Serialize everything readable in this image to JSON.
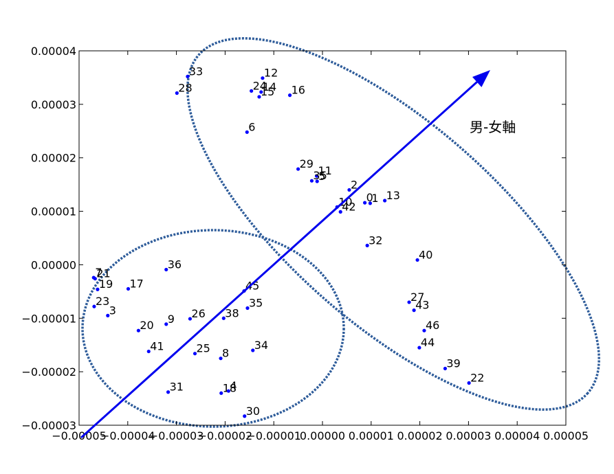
{
  "chart_data": {
    "type": "scatter",
    "title": "",
    "xlabel": "",
    "ylabel": "",
    "xlim": [
      -5e-05,
      5e-05
    ],
    "ylim": [
      -3e-05,
      4e-05
    ],
    "x_ticks": [
      -5e-05,
      -4e-05,
      -3e-05,
      -2e-05,
      -1e-05,
      0.0,
      1e-05,
      2e-05,
      3e-05,
      4e-05,
      5e-05
    ],
    "x_tick_labels": [
      "−0.00005",
      "−0.00004",
      "−0.00003",
      "−0.00002",
      "−0.00001",
      "0.00000",
      "0.00001",
      "0.00002",
      "0.00003",
      "0.00004",
      "0.00005"
    ],
    "y_ticks": [
      -3e-05,
      -2e-05,
      -1e-05,
      0.0,
      1e-05,
      2e-05,
      3e-05,
      4e-05
    ],
    "y_tick_labels": [
      "−0.00003",
      "−0.00002",
      "−0.00001",
      "0.00000",
      "0.00001",
      "0.00002",
      "0.00003",
      "0.00004"
    ],
    "grid": false,
    "point_color": "#0000ff",
    "ellipse_color": "#2e5c9a",
    "arrow_color": "#0000ee",
    "annotation": "男-女軸",
    "points": [
      {
        "label": "33",
        "x": -2.77e-05,
        "y": 3.52e-05
      },
      {
        "label": "12",
        "x": -1.23e-05,
        "y": 3.49e-05
      },
      {
        "label": "28",
        "x": -2.99e-05,
        "y": 3.21e-05
      },
      {
        "label": "24",
        "x": -1.46e-05,
        "y": 3.25e-05
      },
      {
        "label": "14",
        "x": -1.26e-05,
        "y": 3.23e-05
      },
      {
        "label": "15",
        "x": -1.3e-05,
        "y": 3.14e-05
      },
      {
        "label": "16",
        "x": -6.7e-06,
        "y": 3.17e-05
      },
      {
        "label": "6",
        "x": -1.55e-05,
        "y": 2.48e-05
      },
      {
        "label": "29",
        "x": -5e-06,
        "y": 1.79e-05
      },
      {
        "label": "11",
        "x": -1.2e-06,
        "y": 1.66e-05
      },
      {
        "label": "35",
        "x": -2.2e-06,
        "y": 1.57e-05
      },
      {
        "label": "5",
        "x": -1.1e-06,
        "y": 1.56e-05
      },
      {
        "label": "2",
        "x": 5.5e-06,
        "y": 1.4e-05
      },
      {
        "label": "0",
        "x": 8.7e-06,
        "y": 1.16e-05
      },
      {
        "label": "1",
        "x": 9.8e-06,
        "y": 1.15e-05
      },
      {
        "label": "13",
        "x": 1.28e-05,
        "y": 1.2e-05
      },
      {
        "label": "10",
        "x": 3e-06,
        "y": 1.08e-05
      },
      {
        "label": "42",
        "x": 3.7e-06,
        "y": 9.9e-06
      },
      {
        "label": "32",
        "x": 9.2e-06,
        "y": 3.6e-06
      },
      {
        "label": "40",
        "x": 1.95e-05,
        "y": 9e-07
      },
      {
        "label": "36",
        "x": -3.21e-05,
        "y": -9e-07
      },
      {
        "label": "7",
        "x": -4.7e-05,
        "y": -2.4e-06
      },
      {
        "label": "21",
        "x": -4.67e-05,
        "y": -2.6e-06
      },
      {
        "label": "19",
        "x": -4.62e-05,
        "y": -4.6e-06
      },
      {
        "label": "17",
        "x": -3.99e-05,
        "y": -4.5e-06
      },
      {
        "label": "45",
        "x": -1.61e-05,
        "y": -4.9e-06
      },
      {
        "label": "23",
        "x": -4.69e-05,
        "y": -7.8e-06
      },
      {
        "label": "35",
        "x": -1.54e-05,
        "y": -8.1e-06
      },
      {
        "label": "3",
        "x": -4.41e-05,
        "y": -9.5e-06
      },
      {
        "label": "26",
        "x": -2.72e-05,
        "y": -1.01e-05
      },
      {
        "label": "38",
        "x": -2.03e-05,
        "y": -1e-05
      },
      {
        "label": "9",
        "x": -3.21e-05,
        "y": -1.11e-05
      },
      {
        "label": "20",
        "x": -3.78e-05,
        "y": -1.23e-05
      },
      {
        "label": "41",
        "x": -3.57e-05,
        "y": -1.62e-05
      },
      {
        "label": "25",
        "x": -2.62e-05,
        "y": -1.66e-05
      },
      {
        "label": "34",
        "x": -1.43e-05,
        "y": -1.6e-05
      },
      {
        "label": "8",
        "x": -2.09e-05,
        "y": -1.75e-05
      },
      {
        "label": "31",
        "x": -3.17e-05,
        "y": -2.38e-05
      },
      {
        "label": "18",
        "x": -2.08e-05,
        "y": -2.4e-05
      },
      {
        "label": "4",
        "x": -1.93e-05,
        "y": -2.36e-05
      },
      {
        "label": "30",
        "x": -1.6e-05,
        "y": -2.83e-05
      },
      {
        "label": "27",
        "x": 1.78e-05,
        "y": -7e-06
      },
      {
        "label": "43",
        "x": 1.88e-05,
        "y": -8.5e-06
      },
      {
        "label": "46",
        "x": 2.09e-05,
        "y": -1.23e-05
      },
      {
        "label": "44",
        "x": 1.99e-05,
        "y": -1.55e-05
      },
      {
        "label": "39",
        "x": 2.52e-05,
        "y": -1.94e-05
      },
      {
        "label": "22",
        "x": 3.01e-05,
        "y": -2.21e-05
      }
    ]
  }
}
